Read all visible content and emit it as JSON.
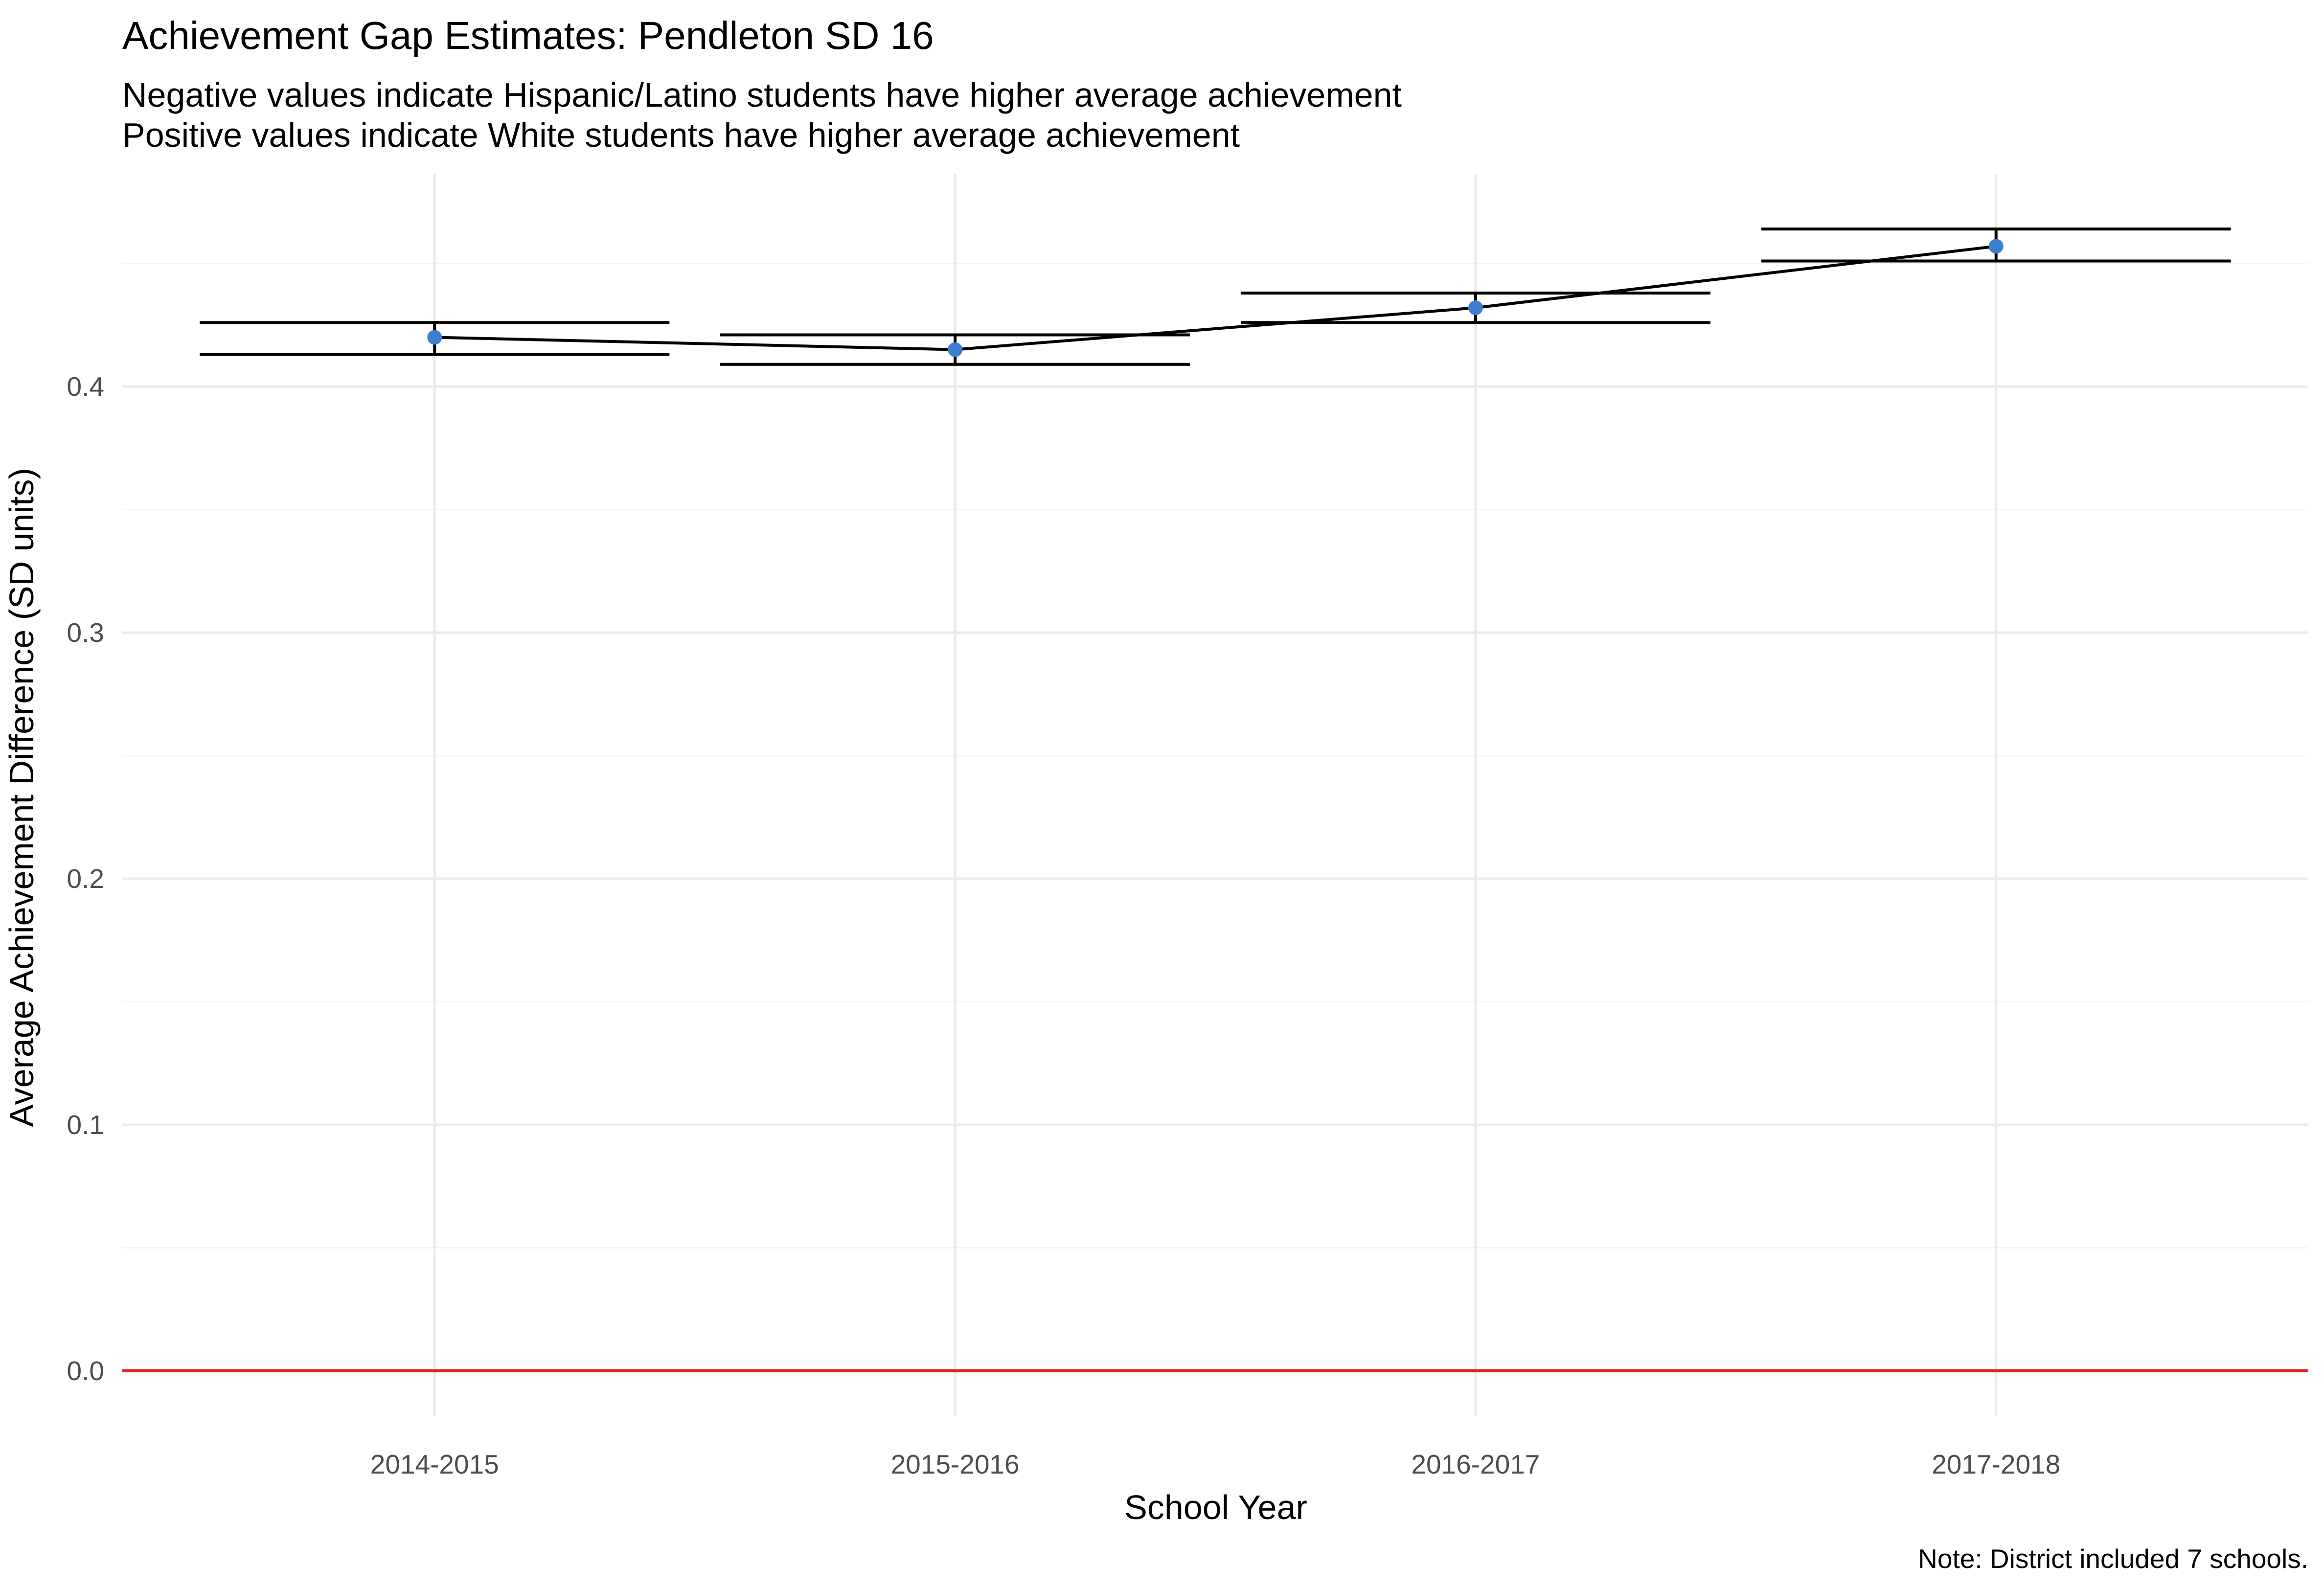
{
  "chart_data": {
    "type": "line",
    "title": "Achievement Gap Estimates: Pendleton SD 16",
    "subtitle_lines": [
      "Negative values indicate Hispanic/Latino students have higher average achievement",
      "Positive values indicate White students have higher average achievement"
    ],
    "xlabel": "School Year",
    "ylabel": "Average Achievement Difference (SD units)",
    "caption": "Note: District included 7 schools.",
    "categories": [
      "2014-2015",
      "2015-2016",
      "2016-2017",
      "2017-2018"
    ],
    "values": [
      0.42,
      0.415,
      0.432,
      0.457
    ],
    "error_low": [
      0.413,
      0.409,
      0.426,
      0.451
    ],
    "error_high": [
      0.426,
      0.421,
      0.438,
      0.464
    ],
    "ylim": [
      -0.0185,
      0.4865
    ],
    "yticks": [
      0.0,
      0.1,
      0.2,
      0.3,
      0.4
    ],
    "ytick_labels": [
      "0.0",
      "0.1",
      "0.2",
      "0.3",
      "0.4"
    ],
    "reference_line": 0,
    "grid": true,
    "legend": "none",
    "colors": {
      "point": "#3c7fd0",
      "line": "#000000",
      "errorbar": "#000000",
      "reference_line": "#e41a1c",
      "grid_major": "#ebebeb",
      "grid_minor": "#f5f5f5"
    }
  }
}
